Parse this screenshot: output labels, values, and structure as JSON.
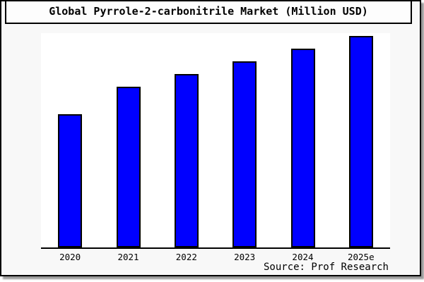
{
  "title": "Global Pyrrole-2-carbonitrile Market (Million USD)",
  "source": "Source: Prof Research",
  "colors": {
    "bar_fill": "#0000ff",
    "bar_edge": "#000000",
    "figure_bg": "#f8f8f8",
    "plot_bg": "#ffffff",
    "axis": "#000000"
  },
  "chart_data": {
    "type": "bar",
    "title": "Global Pyrrole-2-carbonitrile Market (Million USD)",
    "categories": [
      "2020",
      "2021",
      "2022",
      "2023",
      "2024",
      "2025e"
    ],
    "values": [
      0.63,
      0.76,
      0.82,
      0.88,
      0.94,
      1.0
    ],
    "xlabel": "",
    "ylabel": "",
    "ylim": [
      0,
      1.02
    ],
    "gridlines": false,
    "legend": "none",
    "y_axis_tick_labels_visible": false,
    "note": "No numeric y-axis is shown in the figure; values are relative bar heights normalized to the 2025e bar = 1.0"
  }
}
